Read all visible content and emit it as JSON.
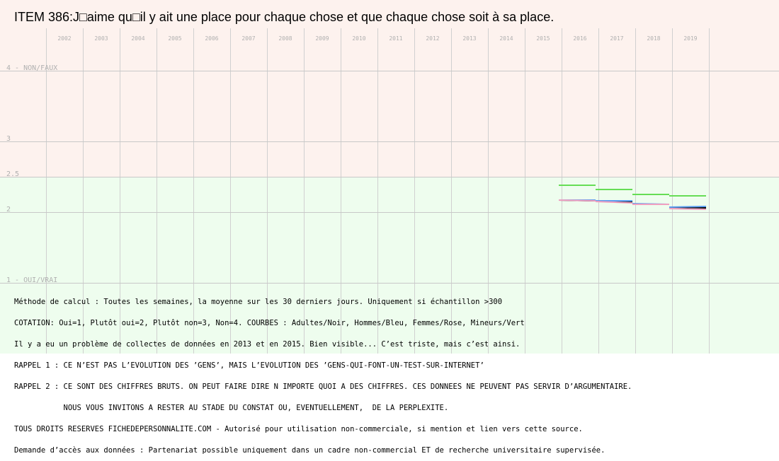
{
  "chart_data": {
    "type": "line",
    "title": "ITEM 386:J□aime qu□il y ait une place pour chaque chose et que chaque chose soit à sa place.",
    "x_ticks": [
      "2002",
      "2003",
      "2004",
      "2005",
      "2006",
      "2007",
      "2008",
      "2009",
      "2010",
      "2011",
      "2012",
      "2013",
      "2014",
      "2015",
      "2016",
      "2017",
      "2018",
      "2019"
    ],
    "y_ticks": [
      {
        "value": 4,
        "label": "4 - NON/FAUX"
      },
      {
        "value": 3,
        "label": "3"
      },
      {
        "value": 2.5,
        "label": "2.5"
      },
      {
        "value": 2,
        "label": "2"
      },
      {
        "value": 1,
        "label": "1 - OUI/VRAI"
      }
    ],
    "ylim": [
      1,
      4
    ],
    "bands": [
      {
        "from": 2.5,
        "to": 4,
        "color": "#fdf2ee"
      },
      {
        "from": 1,
        "to": 2.5,
        "color": "#eefdee"
      }
    ],
    "grid": true,
    "series": [
      {
        "color": "#000000",
        "segments": [
          {
            "year": "2016",
            "values": [
              2.17,
              2.16
            ]
          },
          {
            "year": "2017",
            "values": [
              2.16,
              2.15
            ]
          },
          {
            "year": "2018",
            "values": [
              2.11,
              2.11
            ]
          },
          {
            "year": "2019",
            "values": [
              2.07,
              2.06
            ]
          }
        ]
      },
      {
        "color": "#5a9cf0",
        "segments": [
          {
            "year": "2016",
            "values": [
              2.17,
              2.17
            ]
          },
          {
            "year": "2017",
            "values": [
              2.16,
              2.16
            ]
          },
          {
            "year": "2018",
            "values": [
              2.12,
              2.11
            ]
          },
          {
            "year": "2019",
            "values": [
              2.07,
              2.08
            ]
          }
        ]
      },
      {
        "color": "#f0a0c0",
        "segments": [
          {
            "year": "2016",
            "values": [
              2.17,
              2.16
            ]
          },
          {
            "year": "2017",
            "values": [
              2.15,
              2.13
            ]
          },
          {
            "year": "2018",
            "values": [
              2.11,
              2.11
            ]
          },
          {
            "year": "2019",
            "values": [
              2.05,
              2.04
            ]
          }
        ]
      },
      {
        "color": "#66dd55",
        "segments": [
          {
            "year": "2016",
            "values": [
              2.38,
              2.38
            ]
          },
          {
            "year": "2017",
            "values": [
              2.32,
              2.32
            ]
          },
          {
            "year": "2018",
            "values": [
              2.25,
              2.25
            ]
          },
          {
            "year": "2019",
            "values": [
              2.23,
              2.23
            ]
          }
        ]
      }
    ]
  },
  "notes": [
    "Méthode de calcul : Toutes les semaines, la moyenne sur les 30 derniers jours. Uniquement si échantillon >300",
    "COTATION: Oui=1, Plutôt oui=2, Plutôt non=3, Non=4. COURBES : Adultes/Noir, Hommes/Bleu, Femmes/Rose, Mineurs/Vert",
    "Il y a eu un problème de collectes de données en 2013 et en 2015. Bien visible... C’est triste, mais c’est ainsi.",
    "RAPPEL 1 : CE N’EST PAS L’EVOLUTION DES ’GENS’, MAIS L’EVOLUTION DES ’GENS-QUI-FONT-UN-TEST-SUR-INTERNET’",
    "RAPPEL 2 : CE SONT DES CHIFFRES BRUTS. ON PEUT FAIRE DIRE N IMPORTE QUOI A DES CHIFFRES. CES DONNEES NE PEUVENT PAS SERVIR D’ARGUMENTAIRE.",
    "           NOUS VOUS INVITONS A RESTER AU STADE DU CONSTAT OU, EVENTUELLEMENT,  DE LA PERPLEXITE.",
    "TOUS DROITS RESERVES FICHEDEPERSONNALITE.COM - Autorisé pour utilisation non-commerciale, si mention et lien vers cette source.",
    "Demande d’accès aux données : Partenariat possible uniquement dans un cadre non-commercial ET de recherche universitaire supervisée."
  ]
}
